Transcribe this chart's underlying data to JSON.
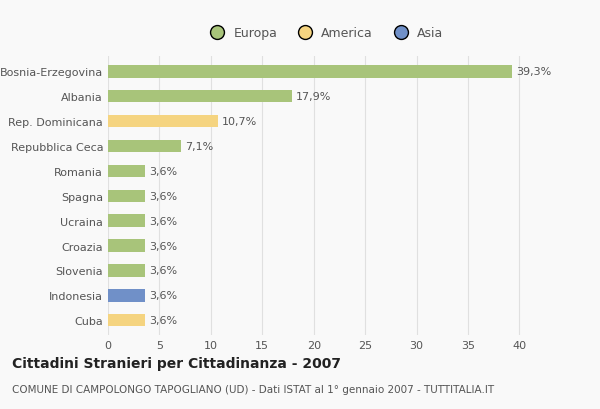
{
  "categories": [
    "Bosnia-Erzegovina",
    "Albania",
    "Rep. Dominicana",
    "Repubblica Ceca",
    "Romania",
    "Spagna",
    "Ucraina",
    "Croazia",
    "Slovenia",
    "Indonesia",
    "Cuba"
  ],
  "values": [
    39.3,
    17.9,
    10.7,
    7.1,
    3.6,
    3.6,
    3.6,
    3.6,
    3.6,
    3.6,
    3.6
  ],
  "labels": [
    "39,3%",
    "17,9%",
    "10,7%",
    "7,1%",
    "3,6%",
    "3,6%",
    "3,6%",
    "3,6%",
    "3,6%",
    "3,6%",
    "3,6%"
  ],
  "bar_colors": [
    "#a8c47a",
    "#a8c47a",
    "#f5d480",
    "#a8c47a",
    "#a8c47a",
    "#a8c47a",
    "#a8c47a",
    "#a8c47a",
    "#a8c47a",
    "#7090c8",
    "#f5d480"
  ],
  "legend_colors": {
    "Europa": "#a8c47a",
    "America": "#f5d480",
    "Asia": "#7090c8"
  },
  "title": "Cittadini Stranieri per Cittadinanza - 2007",
  "subtitle": "COMUNE DI CAMPOLONGO TAPOGLIANO (UD) - Dati ISTAT al 1° gennaio 2007 - TUTTITALIA.IT",
  "xlim": [
    0,
    42
  ],
  "xticks": [
    0,
    5,
    10,
    15,
    20,
    25,
    30,
    35,
    40
  ],
  "background_color": "#f9f9f9",
  "grid_color": "#e0e0e0",
  "bar_height": 0.5,
  "title_fontsize": 10,
  "subtitle_fontsize": 7.5,
  "label_fontsize": 8,
  "tick_fontsize": 8,
  "legend_fontsize": 9,
  "text_color": "#555555"
}
